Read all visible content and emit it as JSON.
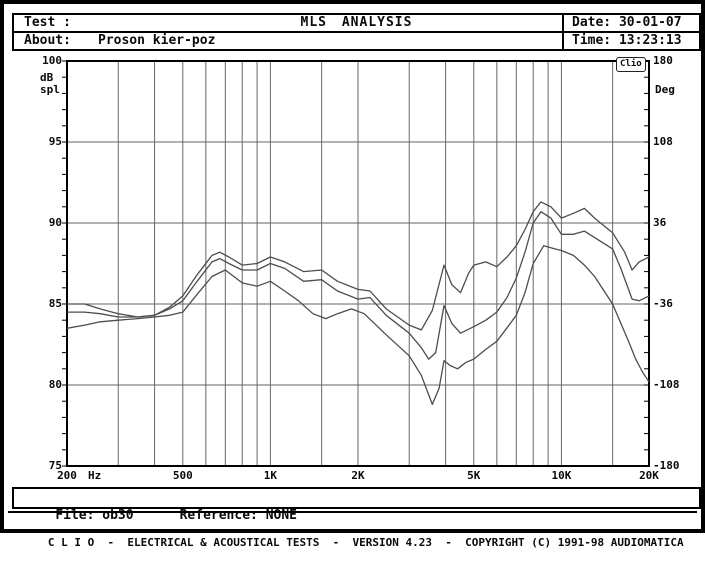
{
  "header": {
    "test_label": "Test :",
    "test_value": "",
    "title": "MLS ANALYSIS",
    "date_label": "Date:",
    "date_value": "30-01-07",
    "about_label": "About:",
    "about_value": "Proson kier-poz",
    "time_label": "Time:",
    "time_value": "13:23:13"
  },
  "chart_data": {
    "type": "line",
    "title": "MLS ANALYSIS",
    "x_axis": {
      "scale": "log",
      "min": 200,
      "max": 20000,
      "unit": "Hz",
      "tick_labels": [
        {
          "f": 200,
          "label": "200"
        },
        {
          "f": 500,
          "label": "500"
        },
        {
          "f": 1000,
          "label": "1K"
        },
        {
          "f": 2000,
          "label": "2K"
        },
        {
          "f": 5000,
          "label": "5K"
        },
        {
          "f": 10000,
          "label": "10K"
        },
        {
          "f": 20000,
          "label": "20K"
        }
      ],
      "gridlines": [
        300,
        400,
        500,
        600,
        700,
        800,
        900,
        1000,
        1500,
        2000,
        3000,
        4000,
        5000,
        6000,
        7000,
        8000,
        9000,
        10000,
        15000,
        20000
      ]
    },
    "y_axis_left": {
      "unit_line1": "dB",
      "unit_line2": "spl",
      "min": 75,
      "max": 100,
      "major_ticks": [
        100,
        95,
        90,
        85,
        80,
        75
      ],
      "minor_step": 1,
      "gridlines": [
        95,
        90,
        85,
        80
      ]
    },
    "y_axis_right": {
      "label": "Deg",
      "min": -180,
      "max": 180,
      "major_ticks": [
        180,
        108,
        36,
        -36,
        -108,
        -180
      ]
    },
    "watermark": "Clio",
    "grid_on": true,
    "legend": "none",
    "series": [
      {
        "name": "response-top",
        "points": [
          [
            200,
            85.0
          ],
          [
            230,
            85.0
          ],
          [
            260,
            84.7
          ],
          [
            300,
            84.4
          ],
          [
            350,
            84.2
          ],
          [
            400,
            84.3
          ],
          [
            450,
            84.8
          ],
          [
            500,
            85.5
          ],
          [
            560,
            86.8
          ],
          [
            630,
            88.0
          ],
          [
            670,
            88.2
          ],
          [
            720,
            87.9
          ],
          [
            800,
            87.4
          ],
          [
            900,
            87.5
          ],
          [
            1000,
            87.9
          ],
          [
            1120,
            87.6
          ],
          [
            1300,
            87.0
          ],
          [
            1500,
            87.1
          ],
          [
            1700,
            86.4
          ],
          [
            2000,
            85.9
          ],
          [
            2200,
            85.8
          ],
          [
            2500,
            84.7
          ],
          [
            3000,
            83.7
          ],
          [
            3300,
            83.4
          ],
          [
            3600,
            84.6
          ],
          [
            3950,
            87.4
          ],
          [
            4200,
            86.2
          ],
          [
            4500,
            85.7
          ],
          [
            4800,
            86.9
          ],
          [
            5000,
            87.4
          ],
          [
            5500,
            87.6
          ],
          [
            6000,
            87.3
          ],
          [
            6500,
            87.9
          ],
          [
            7000,
            88.6
          ],
          [
            7500,
            89.6
          ],
          [
            8000,
            90.7
          ],
          [
            8500,
            91.3
          ],
          [
            9200,
            91.0
          ],
          [
            10000,
            90.3
          ],
          [
            11000,
            90.6
          ],
          [
            12000,
            90.9
          ],
          [
            13000,
            90.3
          ],
          [
            15000,
            89.4
          ],
          [
            16500,
            88.2
          ],
          [
            17500,
            87.1
          ],
          [
            18500,
            87.6
          ],
          [
            20000,
            87.9
          ]
        ]
      },
      {
        "name": "response-mid",
        "points": [
          [
            200,
            84.5
          ],
          [
            230,
            84.5
          ],
          [
            260,
            84.4
          ],
          [
            300,
            84.2
          ],
          [
            350,
            84.2
          ],
          [
            400,
            84.3
          ],
          [
            450,
            84.7
          ],
          [
            500,
            85.2
          ],
          [
            560,
            86.4
          ],
          [
            630,
            87.6
          ],
          [
            670,
            87.8
          ],
          [
            720,
            87.5
          ],
          [
            800,
            87.1
          ],
          [
            900,
            87.1
          ],
          [
            1000,
            87.5
          ],
          [
            1120,
            87.2
          ],
          [
            1300,
            86.4
          ],
          [
            1500,
            86.5
          ],
          [
            1700,
            85.8
          ],
          [
            2000,
            85.3
          ],
          [
            2200,
            85.4
          ],
          [
            2500,
            84.3
          ],
          [
            3000,
            83.2
          ],
          [
            3300,
            82.3
          ],
          [
            3500,
            81.6
          ],
          [
            3700,
            82.0
          ],
          [
            3950,
            84.9
          ],
          [
            4200,
            83.8
          ],
          [
            4500,
            83.2
          ],
          [
            5000,
            83.6
          ],
          [
            5500,
            84.0
          ],
          [
            6000,
            84.5
          ],
          [
            6500,
            85.4
          ],
          [
            7000,
            86.6
          ],
          [
            7500,
            88.2
          ],
          [
            8000,
            90.0
          ],
          [
            8500,
            90.7
          ],
          [
            9200,
            90.3
          ],
          [
            10000,
            89.3
          ],
          [
            11000,
            89.3
          ],
          [
            12000,
            89.5
          ],
          [
            13000,
            89.1
          ],
          [
            15000,
            88.4
          ],
          [
            16000,
            87.2
          ],
          [
            17500,
            85.3
          ],
          [
            18500,
            85.2
          ],
          [
            20000,
            85.5
          ]
        ]
      },
      {
        "name": "response-bottom",
        "points": [
          [
            200,
            83.5
          ],
          [
            230,
            83.7
          ],
          [
            260,
            83.9
          ],
          [
            300,
            84.0
          ],
          [
            350,
            84.1
          ],
          [
            400,
            84.2
          ],
          [
            450,
            84.3
          ],
          [
            500,
            84.5
          ],
          [
            560,
            85.6
          ],
          [
            630,
            86.7
          ],
          [
            700,
            87.1
          ],
          [
            800,
            86.3
          ],
          [
            900,
            86.1
          ],
          [
            1000,
            86.4
          ],
          [
            1120,
            85.8
          ],
          [
            1250,
            85.2
          ],
          [
            1400,
            84.4
          ],
          [
            1550,
            84.1
          ],
          [
            1700,
            84.4
          ],
          [
            1900,
            84.7
          ],
          [
            2100,
            84.4
          ],
          [
            2500,
            83.1
          ],
          [
            3000,
            81.8
          ],
          [
            3300,
            80.6
          ],
          [
            3600,
            78.8
          ],
          [
            3800,
            79.8
          ],
          [
            3950,
            81.5
          ],
          [
            4150,
            81.2
          ],
          [
            4400,
            81.0
          ],
          [
            4700,
            81.4
          ],
          [
            5000,
            81.6
          ],
          [
            5500,
            82.2
          ],
          [
            6000,
            82.7
          ],
          [
            6300,
            83.2
          ],
          [
            7000,
            84.3
          ],
          [
            7500,
            85.7
          ],
          [
            8000,
            87.5
          ],
          [
            8700,
            88.6
          ],
          [
            9500,
            88.4
          ],
          [
            10000,
            88.3
          ],
          [
            11000,
            88.0
          ],
          [
            12000,
            87.4
          ],
          [
            13000,
            86.7
          ],
          [
            15000,
            85.0
          ],
          [
            17000,
            82.7
          ],
          [
            18000,
            81.6
          ],
          [
            19000,
            80.8
          ],
          [
            20000,
            80.2
          ]
        ]
      }
    ]
  },
  "footer": {
    "file_label": "File:",
    "file_value": "ob30",
    "reference_label": "Reference:",
    "reference_value": "NONE",
    "credit": "C L I O  -  ELECTRICAL & ACOUSTICAL TESTS  -  VERSION 4.23  -  COPYRIGHT (C) 1991-98 AUDIOMATICA"
  },
  "colors": {
    "background": "#ffffff",
    "border": "#000000",
    "grid": "#666666",
    "curve": "#4d4d4d",
    "text": "#0a0a0a"
  }
}
